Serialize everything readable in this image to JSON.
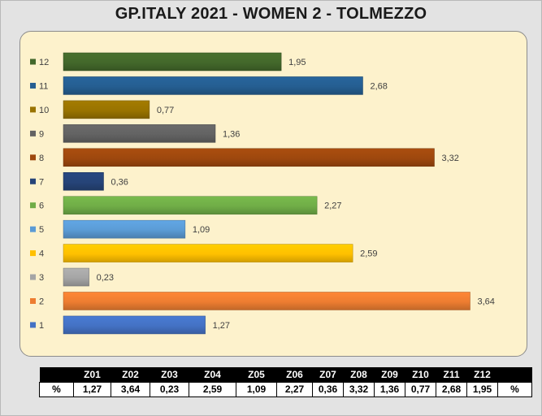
{
  "title": "GP.ITALY 2021 - WOMEN 2 - TOLMEZZO",
  "chart_data": {
    "type": "bar",
    "orientation": "horizontal",
    "title": "GP.ITALY 2021 - WOMEN 2 - TOLMEZZO",
    "categories": [
      "1",
      "2",
      "3",
      "4",
      "5",
      "6",
      "7",
      "8",
      "9",
      "10",
      "11",
      "12"
    ],
    "values": [
      1.27,
      3.64,
      0.23,
      2.59,
      1.09,
      2.27,
      0.36,
      3.32,
      1.36,
      0.77,
      2.68,
      1.95
    ],
    "value_labels": [
      "1,27",
      "3,64",
      "0,23",
      "2,59",
      "1,09",
      "2,27",
      "0,36",
      "3,32",
      "1,36",
      "0,77",
      "2,68",
      "1,95"
    ],
    "colors": [
      "#4472c4",
      "#ed7d31",
      "#a5a5a5",
      "#ffc000",
      "#5b9bd5",
      "#70ad47",
      "#264478",
      "#9e480e",
      "#636363",
      "#997300",
      "#255e91",
      "#43682b"
    ],
    "xlim": [
      0,
      3.8
    ],
    "grid": false,
    "legend": "left"
  },
  "table": {
    "header": [
      "",
      "Z01",
      "Z02",
      "Z03",
      "Z04",
      "Z05",
      "Z06",
      "Z07",
      "Z08",
      "Z09",
      "Z10",
      "Z11",
      "Z12",
      ""
    ],
    "row": [
      "%",
      "1,27",
      "3,64",
      "0,23",
      "2,59",
      "1,09",
      "2,27",
      "0,36",
      "3,32",
      "1,36",
      "0,77",
      "2,68",
      "1,95",
      "%"
    ]
  }
}
